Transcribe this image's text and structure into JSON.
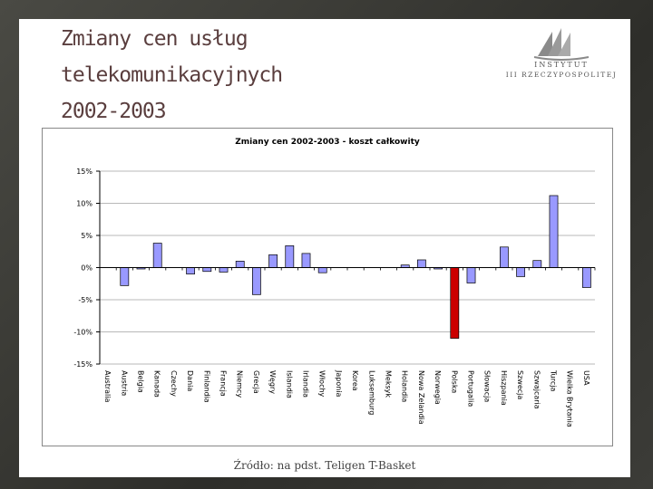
{
  "slide": {
    "title_lines": [
      "Zmiany cen usług",
      "telekomunikacyjnych",
      "2002-2003"
    ],
    "logo_line1": "INSTYTUT",
    "logo_line2": "III RZECZYPOSPOLITEJ",
    "source": "Źródło: na pdst. Teligen T-Basket"
  },
  "colors": {
    "bar": "#9999ff",
    "highlight": "#cc0000",
    "grid": "#b8b8b8",
    "logo": "#8a8a8a"
  },
  "chart_data": {
    "type": "bar",
    "title": "Zmiany cen 2002-2003 - koszt całkowity",
    "xlabel": "",
    "ylabel": "",
    "ylim": [
      -15,
      15
    ],
    "yticks": [
      15,
      10,
      5,
      0,
      -5,
      -10,
      -15
    ],
    "ytick_labels": [
      "15%",
      "10%",
      "5%",
      "0%",
      "-5%",
      "-10%",
      "-15%"
    ],
    "grid": true,
    "highlight_category": "Polska",
    "categories": [
      "Australia",
      "Austria",
      "Belgia",
      "Kanada",
      "Czechy",
      "Dania",
      "Finlandia",
      "Francja",
      "Niemcy",
      "Grecja",
      "Węgry",
      "Islandia",
      "Irlandia",
      "Włochy",
      "Japonia",
      "Korea",
      "Luksemburg",
      "Meksyk",
      "Holandia",
      "Nowa Zelandia",
      "Norwegia",
      "Polska",
      "Portugalia",
      "Słowacja",
      "Hiszpania",
      "Szwecja",
      "Szwajcaria",
      "Turcja",
      "Wielka Brytania",
      "USA"
    ],
    "values": [
      0,
      -2.8,
      -0.2,
      3.8,
      0,
      -1.0,
      -0.6,
      -0.7,
      1.0,
      -4.2,
      2.0,
      3.4,
      2.2,
      -0.8,
      0,
      0,
      0,
      0,
      0.4,
      1.2,
      -0.1,
      -11.0,
      -2.4,
      0,
      3.2,
      -1.4,
      1.1,
      11.2,
      0,
      -3.1
    ]
  }
}
